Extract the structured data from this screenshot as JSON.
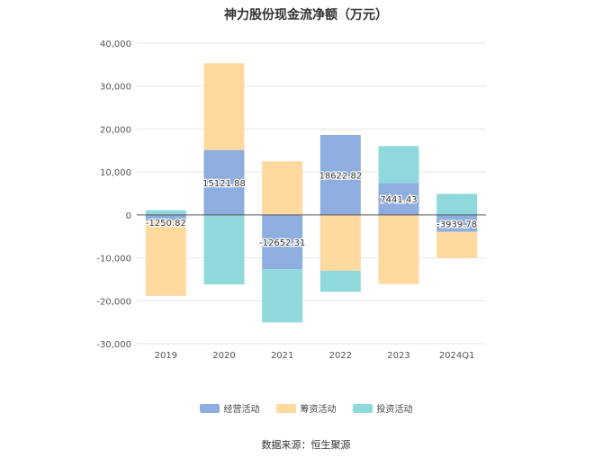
{
  "title": "神力股份现金流净额（万元）",
  "source": "数据来源：恒生聚源",
  "chart_data": {
    "type": "bar",
    "stacked": true,
    "title": "神力股份现金流净额（万元）",
    "categories": [
      "2019",
      "2020",
      "2021",
      "2022",
      "2023",
      "2024Q1"
    ],
    "ylim": [
      -30000,
      40000
    ],
    "yticks": [
      40000,
      30000,
      20000,
      10000,
      0,
      -10000,
      -20000,
      -30000
    ],
    "ytick_labels": [
      "40,000",
      "30,000",
      "20,000",
      "10,000",
      "0",
      "-10,000",
      "-20,000",
      "-30,000"
    ],
    "grid": true,
    "legend_position": "bottom",
    "series": [
      {
        "name": "经营活动",
        "color": "#8faee0",
        "values": [
          -1250.82,
          15121.88,
          -12652.31,
          18622.82,
          7441.43,
          -3939.78
        ],
        "labels": [
          "-1250.82",
          "15121.88",
          "-12652.31",
          "18622.82",
          "7441.43",
          "-3939.78"
        ]
      },
      {
        "name": "筹资活动",
        "color": "#ffd99e",
        "values": [
          -17600,
          20200,
          12500,
          -13000,
          -16100,
          -6100
        ]
      },
      {
        "name": "投资活动",
        "color": "#8fd9dc",
        "values": [
          1100,
          -16200,
          -12400,
          -4900,
          8600,
          4900
        ]
      }
    ]
  }
}
